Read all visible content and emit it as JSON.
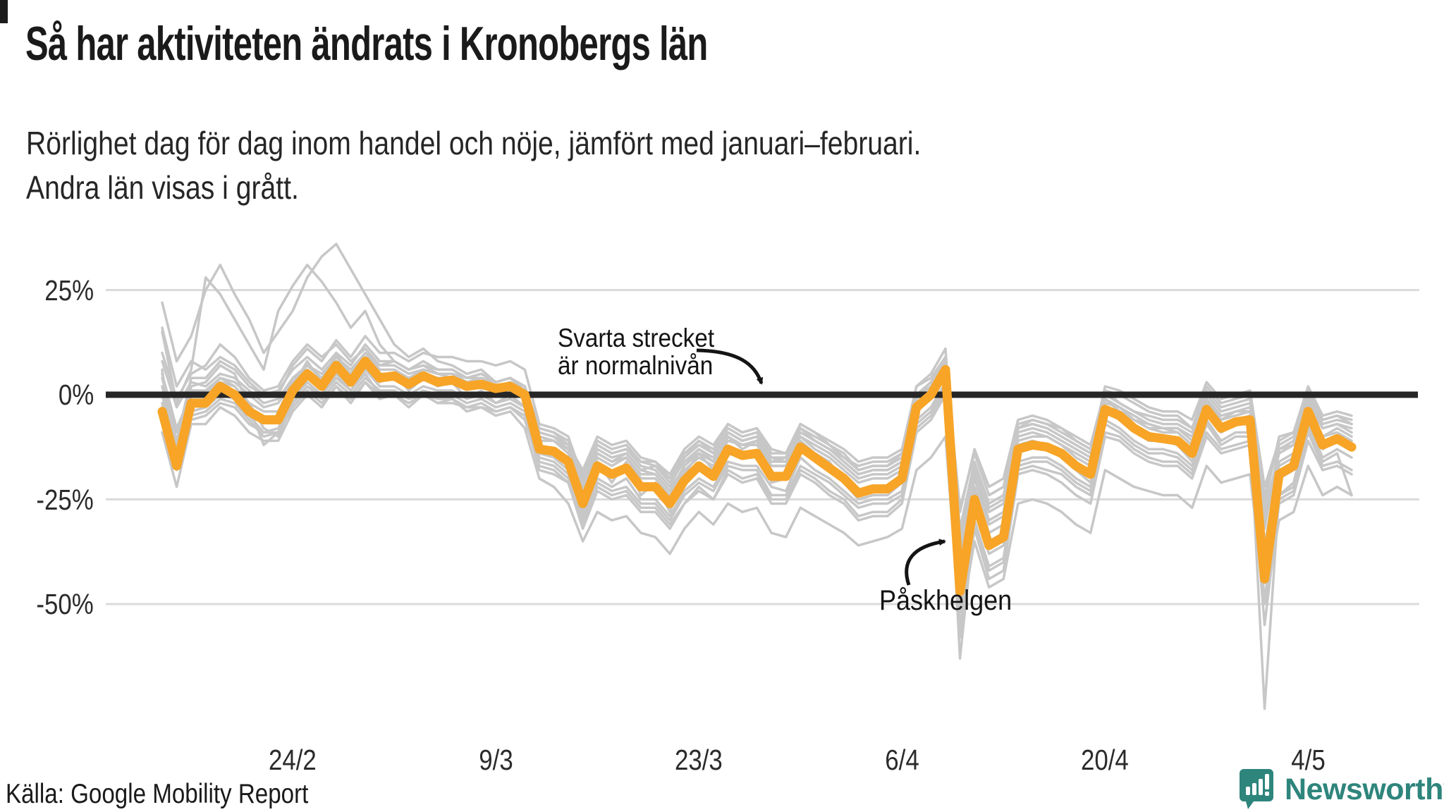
{
  "title": "Så har aktiviteten ändrats i Kronobergs län",
  "subtitle_line1": "Rörlighet dag för dag inom handel och nöje, jämfört med januari–februari.",
  "subtitle_line2": "Andra län visas i grått.",
  "source": "Källa: Google Mobility Report",
  "brand": {
    "name": "Newsworthy",
    "color": "#2E857C"
  },
  "annotations": {
    "baseline_line1": "Svarta strecket",
    "baseline_line2": "är normalnivån",
    "easter": "Påskhelgen"
  },
  "colors": {
    "highlight": "#F7A427",
    "other_counties": "#C7C7C7",
    "baseline": "#262626",
    "grid": "#DBDBDB",
    "text": "#1A1A1A"
  },
  "chart_data": {
    "type": "line",
    "title": "Så har aktiviteten ändrats i Kronobergs län",
    "ylabel": "",
    "xlabel": "",
    "grid": true,
    "legend_position": "none",
    "ylim": [
      -50,
      25
    ],
    "y_ticks": [
      {
        "label": "25%",
        "value": 25
      },
      {
        "label": "0%",
        "value": 0
      },
      {
        "label": "-25%",
        "value": -25
      },
      {
        "label": "-50%",
        "value": -50
      }
    ],
    "x_ticks": [
      {
        "label": "24/2",
        "index": 9
      },
      {
        "label": "9/3",
        "index": 23
      },
      {
        "label": "23/3",
        "index": 37
      },
      {
        "label": "6/4",
        "index": 51
      },
      {
        "label": "20/4",
        "index": 65
      },
      {
        "label": "4/5",
        "index": 79
      }
    ],
    "highlight_series": {
      "name": "Kronobergs län",
      "values": [
        -4,
        -17,
        -2,
        -2,
        2,
        0,
        -4,
        -6,
        -6,
        1,
        5,
        2,
        7,
        3,
        8,
        4,
        4.5,
        2.5,
        4.5,
        3,
        3.5,
        2,
        2.5,
        1.5,
        2,
        0,
        -13,
        -13.5,
        -16,
        -26,
        -17,
        -19,
        -17.5,
        -22,
        -22,
        -26,
        -20.5,
        -17,
        -19.5,
        -13,
        -14.5,
        -14,
        -19.5,
        -19.5,
        -12.5,
        -15,
        -17.5,
        -20,
        -23.5,
        -22.5,
        -22.5,
        -20,
        -3,
        0,
        6,
        -47,
        -25,
        -36,
        -34,
        -13,
        -12,
        -12.5,
        -14,
        -17,
        -19,
        -3.5,
        -5,
        -8,
        -10,
        -10.5,
        -11,
        -14,
        -3.5,
        -8,
        -6.5,
        -6,
        -44,
        -19,
        -17,
        -4,
        -12,
        -10.5,
        -12.5
      ]
    },
    "other_series": [
      [
        22,
        8,
        14,
        25,
        31,
        24,
        18,
        10,
        15,
        20,
        28,
        33,
        36,
        30,
        24,
        18,
        12,
        9,
        11,
        8,
        7,
        5,
        6,
        3,
        4,
        1,
        -8,
        -9,
        -12,
        -18,
        -10,
        -12,
        -11,
        -15,
        -16,
        -19,
        -13,
        -10,
        -12,
        -7,
        -9,
        -8,
        -13,
        -14,
        -7,
        -9,
        -11,
        -13,
        -16,
        -15,
        -15,
        -13,
        2,
        4,
        9,
        -28,
        -13,
        -22,
        -20,
        -6,
        -5,
        -6,
        -8,
        -10,
        -12,
        1,
        -2,
        -4,
        -5,
        -6,
        -6,
        -8,
        1,
        -3,
        -2,
        -1,
        -26,
        -10,
        -9,
        1,
        -6,
        -5,
        -6
      ],
      [
        15,
        -2,
        6,
        28,
        24,
        18,
        12,
        6,
        20,
        26,
        31,
        27,
        22,
        16,
        20,
        12,
        8,
        6,
        7,
        5,
        4,
        2,
        3,
        1,
        2,
        -1,
        -10,
        -11,
        -14,
        -20,
        -12,
        -14,
        -13,
        -17,
        -18,
        -22,
        -15,
        -12,
        -14,
        -9,
        -11,
        -10,
        -15,
        -16,
        -9,
        -11,
        -13,
        -15,
        -18,
        -17,
        -17,
        -15,
        0,
        2,
        7,
        -32,
        -16,
        -26,
        -24,
        -8,
        -7,
        -8,
        -10,
        -12,
        -14,
        -1,
        -4,
        -6,
        -7,
        -8,
        -8,
        -10,
        -1,
        -5,
        -4,
        -3,
        -30,
        -13,
        -12,
        -2,
        -8,
        -7,
        -8
      ],
      [
        5,
        -8,
        0,
        1,
        3,
        2,
        -2,
        -8,
        -10,
        -2,
        2,
        0,
        4,
        1,
        5,
        0,
        1,
        -1,
        0,
        -2,
        -1,
        -4,
        -3,
        -5,
        -4,
        -8,
        -20,
        -22,
        -26,
        -35,
        -28,
        -30,
        -29,
        -33,
        -34,
        -38,
        -32,
        -28,
        -31,
        -26,
        -28,
        -27,
        -33,
        -34,
        -27,
        -29,
        -31,
        -33,
        -36,
        -35,
        -34,
        -32,
        -18,
        -15,
        -10,
        -55,
        -35,
        -46,
        -44,
        -26,
        -25,
        -26,
        -28,
        -31,
        -33,
        -18,
        -20,
        -22,
        -23,
        -24,
        -24,
        -27,
        -17,
        -21,
        -20,
        -19,
        -50,
        -30,
        -28,
        -17,
        -24,
        -22,
        -24
      ],
      [
        2,
        -12,
        -4,
        -3,
        0,
        -1,
        -5,
        -9,
        -8,
        -1,
        3,
        0,
        5,
        1,
        6,
        2,
        2,
        0,
        2,
        1,
        1,
        -1,
        0,
        -2,
        -1,
        -3,
        -15,
        -16,
        -19,
        -29,
        -20,
        -22,
        -20,
        -25,
        -25,
        -29,
        -23,
        -20,
        -22,
        -16,
        -17,
        -17,
        -22,
        -23,
        -15,
        -18,
        -20,
        -23,
        -26,
        -25,
        -25,
        -23,
        -6,
        -3,
        3,
        -63,
        -30,
        -42,
        -40,
        -16,
        -15,
        -15,
        -17,
        -20,
        -22,
        -6,
        -8,
        -11,
        -13,
        -13,
        -14,
        -17,
        -6,
        -11,
        -9,
        -9,
        -75,
        -24,
        -21,
        -7,
        -15,
        -13,
        -15
      ],
      [
        2,
        -11,
        4,
        4,
        8,
        6,
        2,
        0,
        0,
        7,
        11,
        8,
        13,
        9,
        14,
        10,
        10,
        8,
        10,
        9,
        9,
        8,
        8,
        7,
        8,
        6,
        -7,
        -8,
        -10,
        -20,
        -11,
        -13,
        -12,
        -16,
        -16,
        -20,
        -15,
        -11,
        -14,
        -7,
        -9,
        -8,
        -14,
        -14,
        -7,
        -9,
        -12,
        -14,
        -18,
        -17,
        -17,
        -14,
        2,
        5,
        11,
        -38,
        -19,
        -30,
        -28,
        -8,
        -6,
        -7,
        -8,
        -11,
        -13,
        1,
        0,
        -2,
        -4,
        -5,
        -5,
        -8,
        2,
        -2,
        -1,
        0,
        -32,
        -13,
        -11,
        1,
        -6,
        -5,
        -7
      ],
      [
        -9,
        -22,
        -7,
        -7,
        -3,
        -5,
        -9,
        -11,
        -11,
        -4,
        0,
        -3,
        2,
        -2,
        3,
        -1,
        0,
        -3,
        0,
        -2,
        -2,
        -3,
        -3,
        -4,
        -3,
        -5,
        -18,
        -19,
        -21,
        -31,
        -22,
        -24,
        -23,
        -27,
        -27,
        -31,
        -26,
        -22,
        -25,
        -18,
        -20,
        -19,
        -25,
        -25,
        -18,
        -20,
        -23,
        -25,
        -29,
        -28,
        -28,
        -25,
        -8,
        -5,
        1,
        -52,
        -30,
        -41,
        -39,
        -18,
        -17,
        -18,
        -19,
        -22,
        -24,
        -9,
        -10,
        -13,
        -15,
        -16,
        -16,
        -19,
        -9,
        -13,
        -12,
        -11,
        -49,
        -24,
        -22,
        -9,
        -17,
        -16,
        -18
      ],
      [
        8,
        -3,
        3,
        2,
        5,
        4,
        1,
        -2,
        -1,
        4,
        7,
        5,
        9,
        6,
        10,
        7,
        7,
        5,
        6,
        5,
        5,
        3,
        4,
        2,
        3,
        1,
        -9,
        -10,
        -12,
        -21,
        -13,
        -15,
        -14,
        -18,
        -17,
        -21,
        -16,
        -13,
        -15,
        -9,
        -11,
        -10,
        -16,
        -16,
        -9,
        -11,
        -13,
        -16,
        -19,
        -18,
        -18,
        -16,
        -1,
        2,
        8,
        -27,
        -14,
        -24,
        -22,
        -7,
        -6,
        -7,
        -9,
        -11,
        -13,
        0,
        -2,
        -4,
        -6,
        -7,
        -7,
        -9,
        0,
        -4,
        -3,
        -2,
        -24,
        -12,
        -10,
        0,
        -7,
        -6,
        -7
      ],
      [
        0,
        -15,
        -5,
        -4,
        -1,
        -2,
        -6,
        -10,
        -9,
        -2,
        2,
        -1,
        3,
        0,
        4,
        1,
        1,
        -1,
        1,
        0,
        0,
        -2,
        -1,
        -3,
        -2,
        -4,
        -16,
        -17,
        -20,
        -30,
        -21,
        -23,
        -22,
        -26,
        -26,
        -30,
        -24,
        -21,
        -23,
        -17,
        -18,
        -18,
        -24,
        -24,
        -17,
        -19,
        -21,
        -24,
        -27,
        -26,
        -26,
        -24,
        -7,
        -4,
        2,
        -50,
        -27,
        -38,
        -36,
        -17,
        -16,
        -16,
        -18,
        -21,
        -23,
        -7,
        -9,
        -12,
        -14,
        -14,
        -15,
        -18,
        -7,
        -12,
        -10,
        -10,
        -45,
        -25,
        -23,
        -8,
        -16,
        -14,
        -24
      ],
      [
        10,
        -1,
        5,
        7,
        12,
        9,
        4,
        1,
        2,
        8,
        12,
        9,
        12,
        8,
        11,
        7,
        8,
        6,
        8,
        6,
        6,
        4,
        5,
        3,
        4,
        2,
        -8,
        -9,
        -11,
        -19,
        -12,
        -14,
        -13,
        -16,
        -17,
        -20,
        -14,
        -11,
        -13,
        -8,
        -10,
        -9,
        -15,
        -15,
        -8,
        -10,
        -12,
        -15,
        -17,
        -16,
        -16,
        -14,
        0,
        3,
        9,
        -35,
        -18,
        -28,
        -26,
        -9,
        -8,
        -9,
        -11,
        -13,
        -15,
        -2,
        -3,
        -5,
        -7,
        -8,
        -8,
        -11,
        -2,
        -6,
        -5,
        -4,
        -28,
        -14,
        -12,
        -1,
        -8,
        -7,
        -9
      ],
      [
        -2,
        -14,
        0,
        0,
        4,
        2,
        -2,
        -4,
        -4,
        3,
        7,
        4,
        9,
        5,
        10,
        6,
        6,
        4,
        6,
        5,
        5,
        4,
        4,
        3,
        4,
        2,
        -11,
        -11,
        -14,
        -24,
        -15,
        -17,
        -15,
        -20,
        -20,
        -24,
        -18,
        -15,
        -17,
        -11,
        -12,
        -12,
        -17,
        -17,
        -10,
        -13,
        -15,
        -18,
        -21,
        -20,
        -20,
        -18,
        -1,
        2,
        8,
        -43,
        -22,
        -33,
        -31,
        -11,
        -10,
        -10,
        -12,
        -15,
        -17,
        -1,
        -3,
        -6,
        -8,
        -8,
        -9,
        -12,
        -1,
        -6,
        -4,
        -4,
        -40,
        -17,
        -15,
        -2,
        -10,
        -8,
        -10
      ],
      [
        -3,
        -16,
        -6,
        -5,
        -2,
        -3,
        -7,
        -9,
        -9,
        -3,
        1,
        -2,
        2,
        -1,
        3,
        0,
        0,
        -2,
        0,
        -1,
        -1,
        -3,
        -2,
        -4,
        -3,
        -6,
        -17,
        -18,
        -21,
        -32,
        -23,
        -25,
        -24,
        -28,
        -28,
        -32,
        -26,
        -23,
        -25,
        -19,
        -21,
        -20,
        -26,
        -26,
        -19,
        -21,
        -24,
        -26,
        -30,
        -29,
        -29,
        -26,
        -9,
        -6,
        0,
        -58,
        -32,
        -44,
        -42,
        -19,
        -18,
        -19,
        -21,
        -24,
        -26,
        -10,
        -11,
        -14,
        -16,
        -17,
        -17,
        -20,
        -10,
        -14,
        -13,
        -12,
        -55,
        -26,
        -24,
        -11,
        -18,
        -17,
        -19
      ],
      [
        16,
        2,
        8,
        6,
        9,
        7,
        3,
        0,
        1,
        6,
        9,
        6,
        10,
        7,
        12,
        8,
        8,
        6,
        7,
        6,
        6,
        4,
        5,
        3,
        4,
        1,
        -9,
        -10,
        -13,
        -22,
        -14,
        -16,
        -15,
        -19,
        -19,
        -23,
        -17,
        -14,
        -16,
        -10,
        -12,
        -11,
        -17,
        -17,
        -10,
        -12,
        -14,
        -17,
        -20,
        -19,
        -19,
        -17,
        -2,
        1,
        7,
        -40,
        -20,
        -31,
        -29,
        -10,
        -9,
        -10,
        -12,
        -14,
        -16,
        -3,
        -4,
        -6,
        -8,
        -9,
        -9,
        -12,
        -3,
        -7,
        -6,
        -5,
        -36,
        -16,
        -14,
        -3,
        -10,
        -9,
        -11
      ],
      [
        6,
        -18,
        2,
        3,
        7,
        5,
        -3,
        -12,
        -9,
        2,
        8,
        3,
        10,
        4,
        9,
        3,
        5,
        1,
        4,
        2,
        3,
        -1,
        1,
        -2,
        0,
        -3,
        -14,
        -15,
        -18,
        -28,
        -16,
        -21,
        -16,
        -24,
        -21,
        -28,
        -19,
        -14,
        -18,
        -10,
        -13,
        -11,
        -21,
        -20,
        -11,
        -14,
        -16,
        -21,
        -25,
        -24,
        -24,
        -21,
        -4,
        -1,
        5,
        -45,
        -23,
        -35,
        -33,
        -12,
        -11,
        -12,
        -15,
        -18,
        -21,
        -4,
        -6,
        -8,
        -11,
        -11,
        -12,
        -16,
        -4,
        -9,
        -7,
        -7,
        -42,
        -20,
        -18,
        -5,
        -13,
        -11,
        -13
      ],
      [
        4,
        -9,
        1,
        1,
        4,
        3,
        0,
        -3,
        -2,
        3,
        6,
        3,
        8,
        4,
        9,
        5,
        5,
        3,
        5,
        4,
        4,
        2,
        3,
        1,
        2,
        0,
        -10,
        -11,
        -13,
        -23,
        -14,
        -16,
        -14,
        -18,
        -19,
        -23,
        -17,
        -13,
        -16,
        -9,
        -11,
        -10,
        -16,
        -15,
        -8,
        -11,
        -13,
        -16,
        -19,
        -18,
        -18,
        -16,
        0,
        3,
        9,
        -33,
        -17,
        -27,
        -25,
        -8,
        -7,
        -8,
        -10,
        -12,
        -14,
        2,
        1,
        -1,
        -3,
        -4,
        -4,
        -6,
        3,
        -1,
        0,
        1,
        -22,
        -11,
        -9,
        2,
        -5,
        -4,
        -5
      ]
    ]
  }
}
